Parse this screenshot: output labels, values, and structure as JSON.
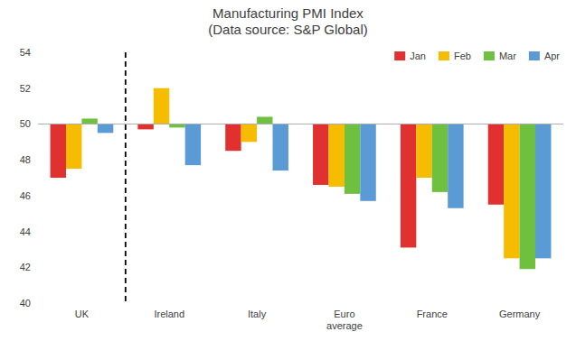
{
  "chart_data": {
    "type": "bar",
    "title": "Manufacturing PMI Index\n(Data source: S&P Global)",
    "categories": [
      "UK",
      "Ireland",
      "Italy",
      "Euro\naverage",
      "France",
      "Germany"
    ],
    "series": [
      {
        "name": "Jan",
        "color": "#e03030",
        "values": [
          47.0,
          49.7,
          48.5,
          46.6,
          43.1,
          45.5
        ]
      },
      {
        "name": "Feb",
        "color": "#f5bc00",
        "values": [
          47.5,
          52.0,
          49.0,
          46.5,
          47.0,
          42.5
        ]
      },
      {
        "name": "Mar",
        "color": "#70c040",
        "values": [
          50.3,
          49.8,
          50.4,
          46.1,
          46.2,
          41.9
        ]
      },
      {
        "name": "Apr",
        "color": "#5b9bd5",
        "values": [
          49.5,
          47.7,
          47.4,
          45.7,
          45.3,
          42.5
        ]
      }
    ],
    "baseline": 50,
    "ylim": [
      40,
      54
    ],
    "yticks": [
      40,
      42,
      44,
      46,
      48,
      50,
      52,
      54
    ],
    "grid": false,
    "legend": "upper right"
  }
}
